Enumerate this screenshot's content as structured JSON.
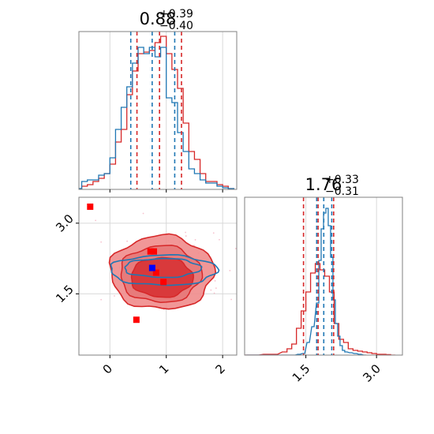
{
  "chart_data": {
    "type": "corner",
    "colors": {
      "red": "#d62728",
      "red_light": "#f08c8c",
      "blue": "#1f77b4",
      "marker_blue": "#0000ff",
      "marker_red": "#ff0000",
      "grid": "#d9d9d9",
      "spine": "#808080"
    },
    "param1": {
      "title": {
        "value": "0.88",
        "upper": "+0.39",
        "lower": "−0.40"
      },
      "range": [
        -0.55,
        2.25
      ],
      "ticks": [
        0,
        1,
        2
      ],
      "tick_labels": [
        "0",
        "1",
        "2"
      ],
      "red_quantiles": [
        0.48,
        0.88,
        1.27
      ],
      "blue_quantiles": [
        0.37,
        0.75,
        1.15
      ]
    },
    "param2": {
      "title": {
        "value": "1.76",
        "upper": "+0.33",
        "lower": "−0.31"
      },
      "range": [
        0.2,
        3.55
      ],
      "ticks": [
        1.5,
        3.0
      ],
      "tick_labels": [
        "1.5",
        "3.0"
      ],
      "red_quantiles": [
        1.45,
        1.76,
        2.09
      ],
      "blue_quantiles": [
        1.73,
        1.88,
        2.05
      ]
    },
    "markers_red": [
      [
        -0.35,
        3.35
      ],
      [
        0.47,
        0.95
      ],
      [
        0.72,
        2.4
      ],
      [
        0.78,
        2.4
      ],
      [
        0.82,
        1.95
      ],
      [
        0.95,
        1.75
      ]
    ],
    "markers_blue": [
      [
        0.75,
        2.05
      ]
    ],
    "hist1_red": [
      [
        -0.55,
        0.005
      ],
      [
        -0.45,
        0.02
      ],
      [
        -0.35,
        0.03
      ],
      [
        -0.25,
        0.05
      ],
      [
        -0.15,
        0.07
      ],
      [
        -0.05,
        0.1
      ],
      [
        0.05,
        0.16
      ],
      [
        0.15,
        0.3
      ],
      [
        0.25,
        0.38
      ],
      [
        0.35,
        0.6
      ],
      [
        0.45,
        0.75
      ],
      [
        0.55,
        0.86
      ],
      [
        0.65,
        0.87
      ],
      [
        0.75,
        0.88
      ],
      [
        0.85,
        0.93
      ],
      [
        0.95,
        0.97
      ],
      [
        1.05,
        0.86
      ],
      [
        1.15,
        0.76
      ],
      [
        1.25,
        0.64
      ],
      [
        1.35,
        0.42
      ],
      [
        1.45,
        0.24
      ],
      [
        1.55,
        0.19
      ],
      [
        1.65,
        0.1
      ],
      [
        1.75,
        0.05
      ],
      [
        1.85,
        0.05
      ],
      [
        1.95,
        0.03
      ],
      [
        2.05,
        0.02
      ],
      [
        2.15,
        0.005
      ]
    ],
    "hist1_blue": [
      [
        -0.55,
        0.005
      ],
      [
        -0.45,
        0.05
      ],
      [
        -0.35,
        0.06
      ],
      [
        -0.25,
        0.06
      ],
      [
        -0.15,
        0.09
      ],
      [
        -0.05,
        0.1
      ],
      [
        0.05,
        0.2
      ],
      [
        0.15,
        0.38
      ],
      [
        0.25,
        0.52
      ],
      [
        0.35,
        0.65
      ],
      [
        0.45,
        0.8
      ],
      [
        0.55,
        0.9
      ],
      [
        0.65,
        0.86
      ],
      [
        0.75,
        0.9
      ],
      [
        0.85,
        0.84
      ],
      [
        0.95,
        0.9
      ],
      [
        1.05,
        0.58
      ],
      [
        1.15,
        0.55
      ],
      [
        1.25,
        0.36
      ],
      [
        1.35,
        0.24
      ],
      [
        1.45,
        0.13
      ],
      [
        1.55,
        0.1
      ],
      [
        1.65,
        0.06
      ],
      [
        1.75,
        0.04
      ],
      [
        1.85,
        0.04
      ],
      [
        1.95,
        0.02
      ],
      [
        2.05,
        0.01
      ],
      [
        2.15,
        0.005
      ]
    ],
    "hist2_red": [
      [
        0.25,
        0
      ],
      [
        0.45,
        0
      ],
      [
        0.65,
        0.005
      ],
      [
        0.85,
        0.005
      ],
      [
        1.05,
        0.02
      ],
      [
        1.15,
        0.04
      ],
      [
        1.25,
        0.07
      ],
      [
        1.35,
        0.17
      ],
      [
        1.45,
        0.28
      ],
      [
        1.55,
        0.4
      ],
      [
        1.65,
        0.52
      ],
      [
        1.75,
        0.58
      ],
      [
        1.85,
        0.54
      ],
      [
        1.95,
        0.5
      ],
      [
        2.05,
        0.4
      ],
      [
        2.15,
        0.2
      ],
      [
        2.25,
        0.1
      ],
      [
        2.35,
        0.08
      ],
      [
        2.45,
        0.04
      ],
      [
        2.55,
        0.03
      ],
      [
        2.65,
        0.025
      ],
      [
        2.75,
        0.02
      ],
      [
        2.85,
        0.015
      ],
      [
        2.95,
        0.01
      ],
      [
        3.05,
        0.005
      ],
      [
        3.15,
        0.005
      ],
      [
        3.25,
        0.003
      ],
      [
        3.35,
        0
      ]
    ],
    "hist2_blue": [
      [
        0.25,
        0
      ],
      [
        1.25,
        0
      ],
      [
        1.35,
        0.005
      ],
      [
        1.45,
        0.01
      ],
      [
        1.55,
        0.08
      ],
      [
        1.65,
        0.18
      ],
      [
        1.75,
        0.33
      ],
      [
        1.8,
        0.6
      ],
      [
        1.85,
        0.8
      ],
      [
        1.9,
        0.9
      ],
      [
        1.95,
        0.93
      ],
      [
        2.0,
        0.82
      ],
      [
        2.05,
        0.62
      ],
      [
        2.1,
        0.35
      ],
      [
        2.15,
        0.2
      ],
      [
        2.2,
        0.12
      ],
      [
        2.25,
        0.06
      ],
      [
        2.3,
        0.03
      ],
      [
        2.35,
        0.02
      ],
      [
        2.45,
        0.015
      ],
      [
        2.55,
        0.01
      ],
      [
        2.65,
        0.005
      ],
      [
        2.75,
        0
      ]
    ]
  }
}
